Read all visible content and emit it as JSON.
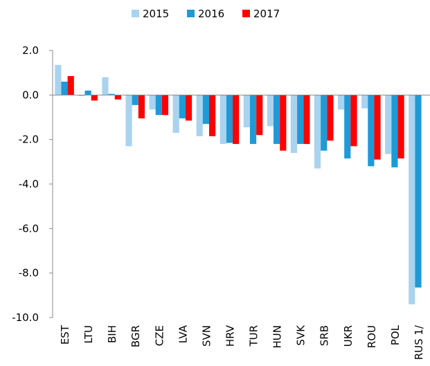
{
  "chart_data": {
    "type": "bar",
    "categories": [
      "EST",
      "LTU",
      "BIH",
      "BGR",
      "CZE",
      "LVA",
      "SVN",
      "HRV",
      "TUR",
      "HUN",
      "SVK",
      "SRB",
      "UKR",
      "ROU",
      "POL",
      "RUS 1/"
    ],
    "series": [
      {
        "name": "2015",
        "color": "#a9d3ef",
        "values": [
          1.35,
          -0.05,
          0.8,
          -2.3,
          -0.65,
          -1.7,
          -1.85,
          -2.2,
          -1.45,
          -1.4,
          -2.6,
          -3.3,
          -0.65,
          -0.6,
          -2.65,
          -9.4
        ]
      },
      {
        "name": "2016",
        "color": "#1f9ad6",
        "values": [
          0.6,
          0.2,
          0.05,
          -0.45,
          -0.9,
          -1.05,
          -1.3,
          -2.15,
          -2.2,
          -2.2,
          -2.2,
          -2.5,
          -2.85,
          -3.2,
          -3.25,
          -8.65
        ]
      },
      {
        "name": "2017",
        "color": "#ff0000",
        "values": [
          0.85,
          -0.25,
          -0.2,
          -1.05,
          -0.9,
          -1.15,
          -1.85,
          -2.2,
          -1.8,
          -2.5,
          -2.2,
          -2.05,
          -2.3,
          -2.9,
          -2.85,
          null
        ]
      }
    ],
    "ylim": [
      -10,
      2
    ],
    "yticks": [
      {
        "value": 2,
        "label": "2.0"
      },
      {
        "value": 0,
        "label": "0.0"
      },
      {
        "value": -2,
        "label": "-2.0"
      },
      {
        "value": -4,
        "label": "-4.0"
      },
      {
        "value": -6,
        "label": "-6.0"
      },
      {
        "value": -8,
        "label": "-8.0"
      },
      {
        "value": -10,
        "label": "-10.0"
      }
    ],
    "legend": "top"
  }
}
